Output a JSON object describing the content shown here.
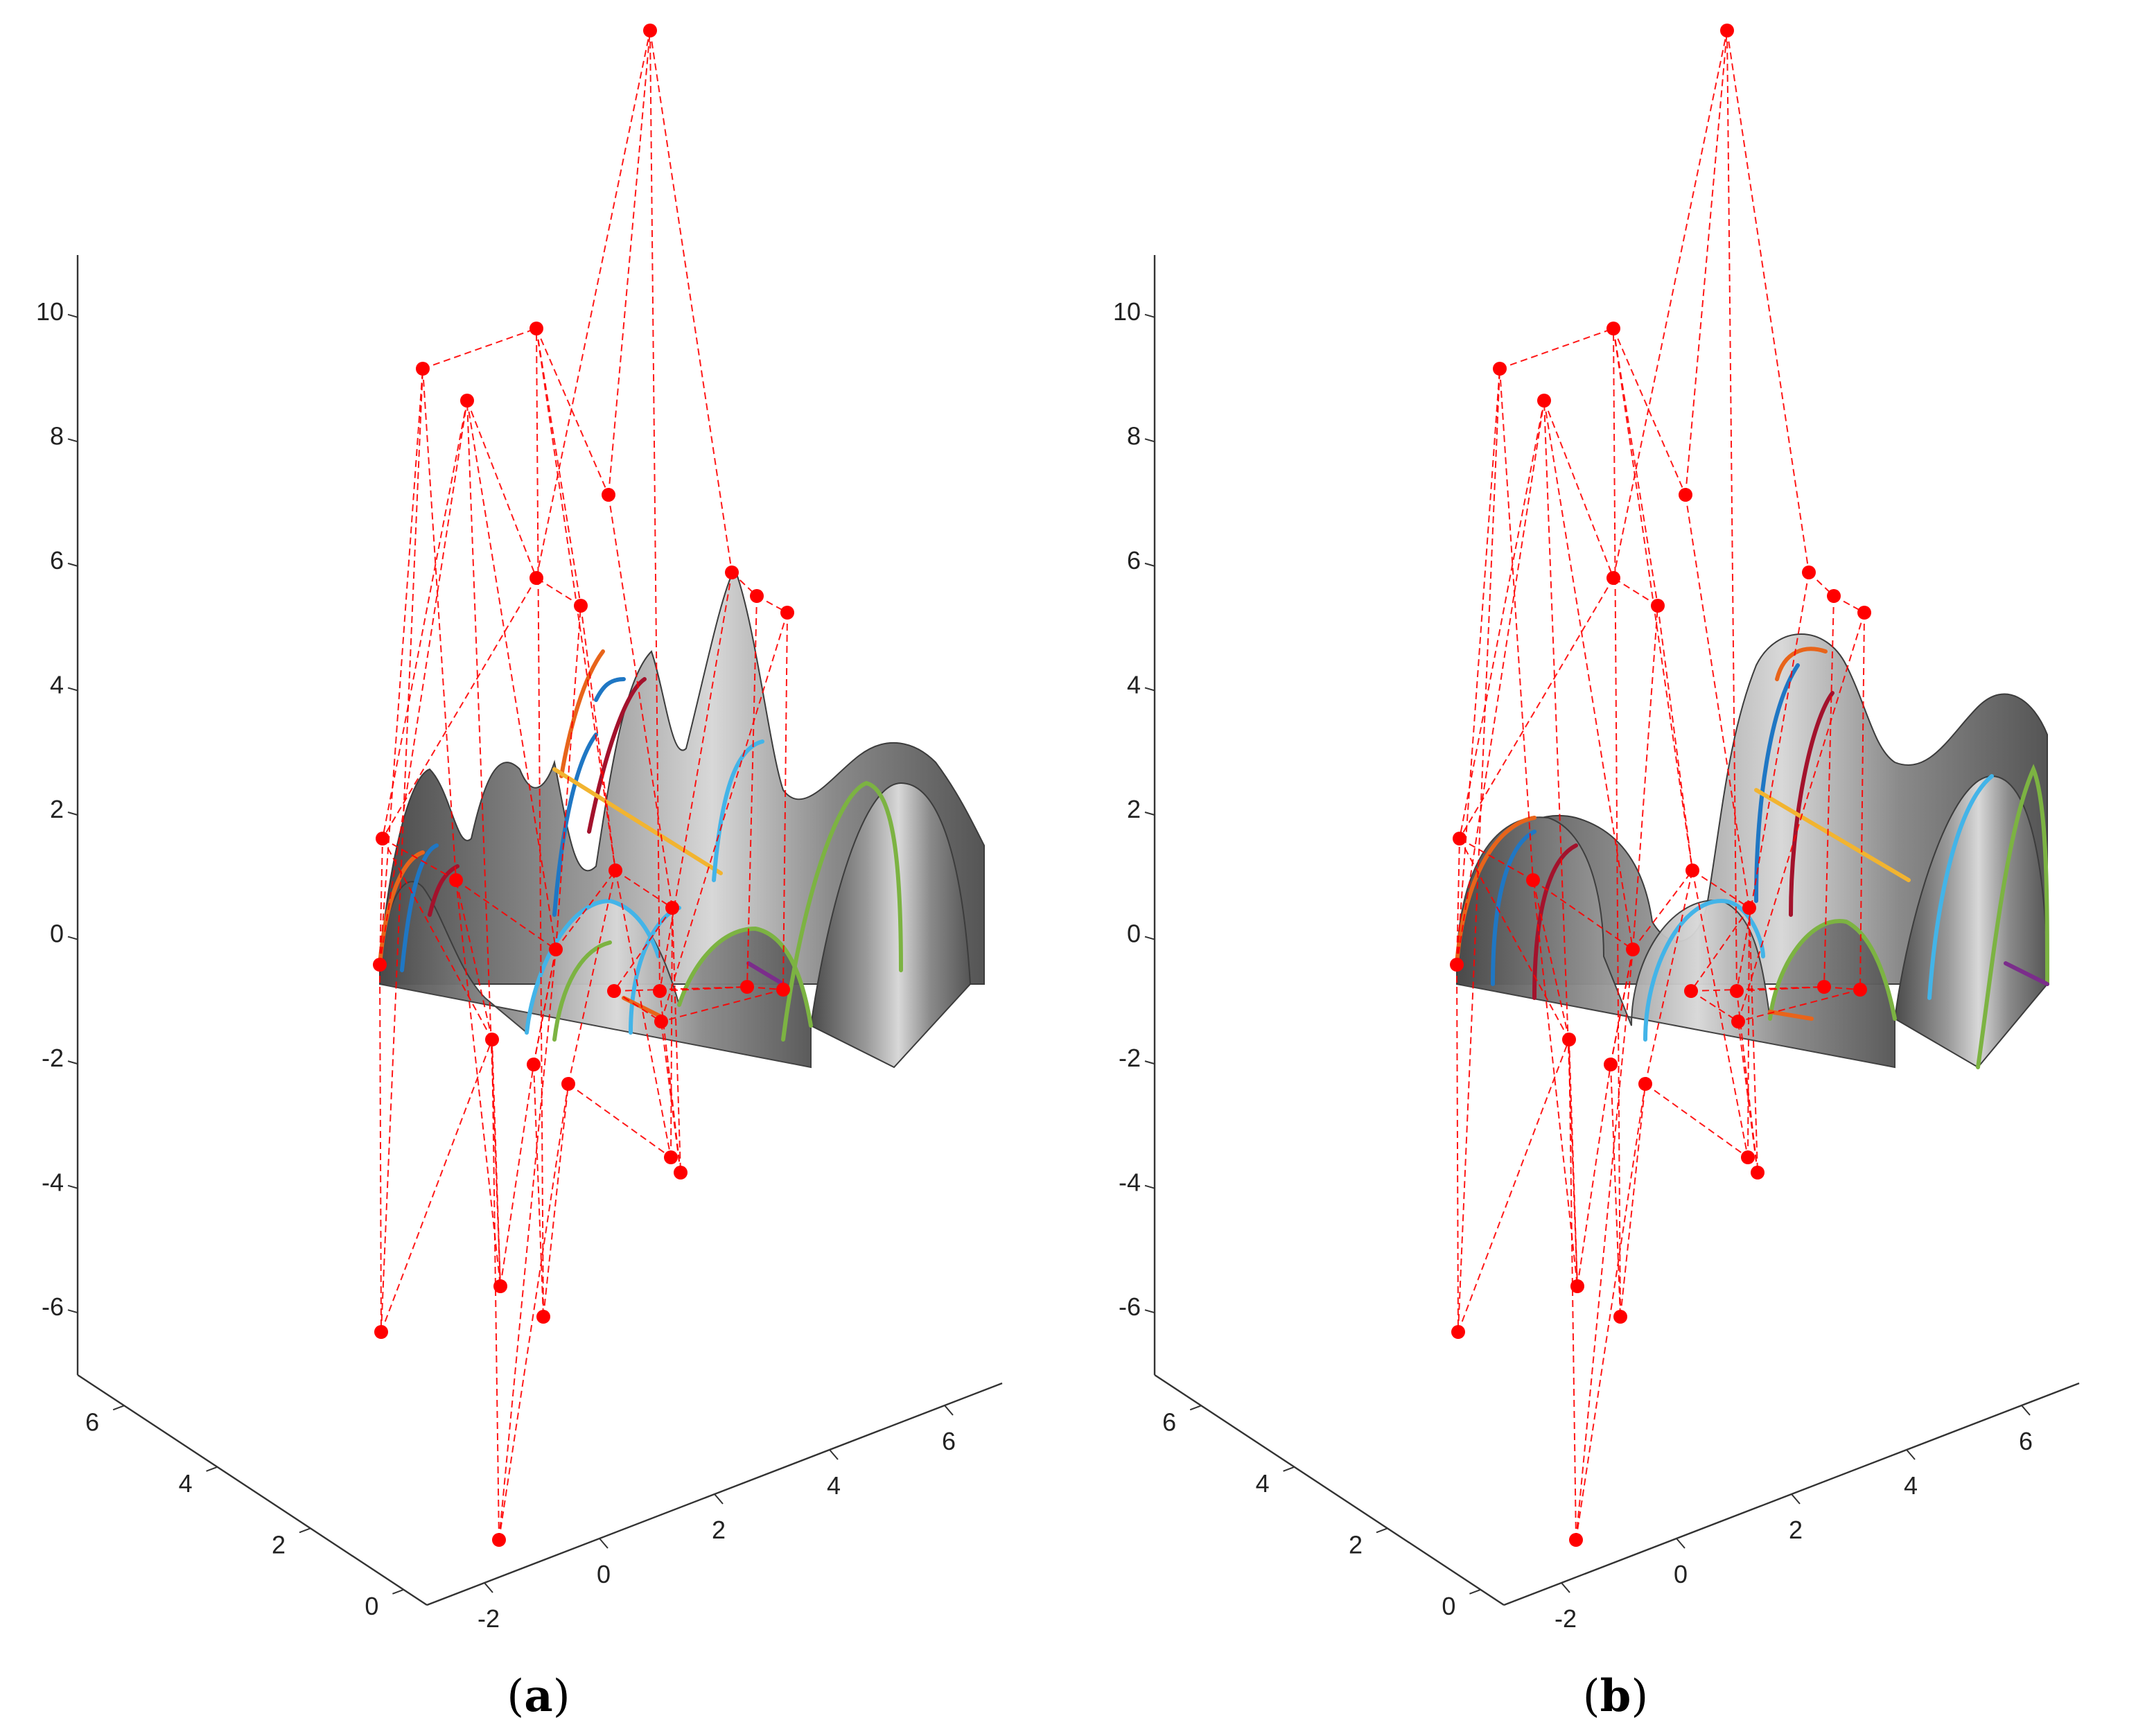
{
  "chart_data": [
    {
      "type": "surface3d",
      "caption": "(a)",
      "caption_letter": "a",
      "zticks": [
        "10",
        "8",
        "6",
        "4",
        "2",
        "0",
        "-2",
        "-4",
        "-6"
      ],
      "yticks": [
        "6",
        "4",
        "2",
        "0"
      ],
      "xticks": [
        "-2",
        "0",
        "2",
        "4",
        "6"
      ],
      "zlim": [
        -7,
        11
      ],
      "xlim": [
        -3,
        7
      ],
      "ylim": [
        -0.5,
        7
      ],
      "grid": false,
      "surface": "rough",
      "colors": {
        "control_polygon": "#ff0000",
        "surface": "#6e6e6e",
        "blue": "#1f77c4",
        "sky": "#43b4e8",
        "maroon": "#a3122c",
        "orange": "#e8641a",
        "yellow": "#f2b430",
        "green": "#7cb342",
        "purple": "#7b2d8b"
      }
    },
    {
      "type": "surface3d",
      "caption": "(b)",
      "caption_letter": "b",
      "zticks": [
        "10",
        "8",
        "6",
        "4",
        "2",
        "0",
        "-2",
        "-4",
        "-6"
      ],
      "yticks": [
        "6",
        "4",
        "2",
        "0"
      ],
      "xticks": [
        "-2",
        "0",
        "2",
        "4",
        "6"
      ],
      "zlim": [
        -7,
        11
      ],
      "xlim": [
        -3,
        7
      ],
      "ylim": [
        -0.5,
        7
      ],
      "grid": false,
      "surface": "smooth",
      "colors": {
        "control_polygon": "#ff0000",
        "surface": "#6e6e6e",
        "blue": "#1f77c4",
        "sky": "#43b4e8",
        "maroon": "#a3122c",
        "orange": "#e8641a",
        "yellow": "#f2b430",
        "green": "#7cb342",
        "purple": "#7b2d8b"
      }
    }
  ]
}
